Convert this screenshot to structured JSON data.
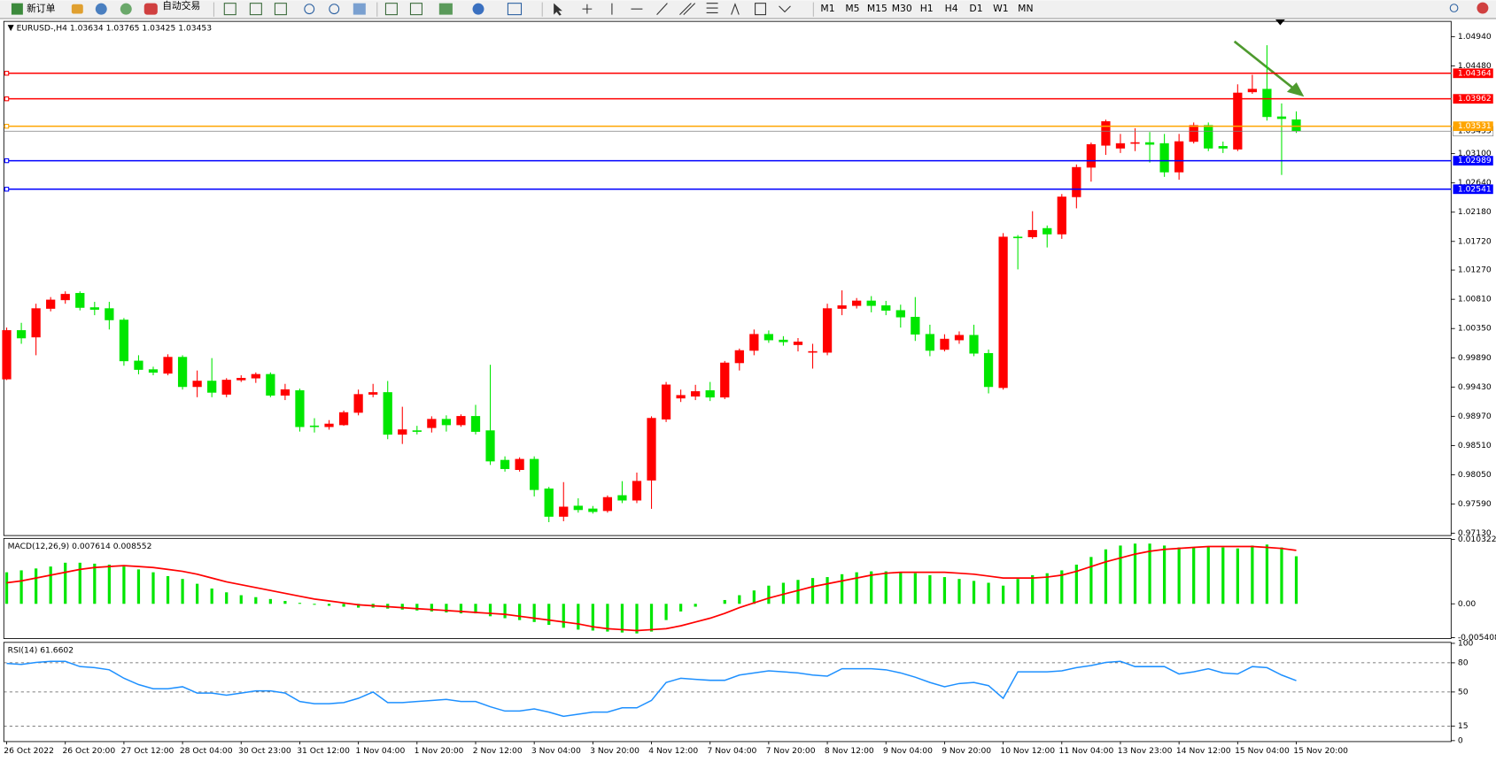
{
  "toolbar": {
    "new_order": "新订单",
    "auto_trading": "自动交易",
    "timeframes": [
      "M1",
      "M5",
      "M15",
      "M30",
      "H1",
      "H4",
      "D1",
      "W1",
      "MN"
    ]
  },
  "chart_data": [
    {
      "type": "candlestick",
      "symbol": "EURUSD-,H4",
      "categories": [
        "26 Oct 2022",
        null,
        null,
        null,
        "26 Oct 20:00",
        null,
        null,
        null,
        "27 Oct 12:00",
        null,
        null,
        null,
        "28 Oct 04:00",
        null,
        null,
        null,
        "30 Oct 23:00",
        null,
        null,
        null,
        "31 Oct 12:00",
        null,
        null,
        null,
        "1 Nov 04:00",
        null,
        null,
        null,
        "1 Nov 20:00",
        null,
        null,
        null,
        "2 Nov 12:00",
        null,
        null,
        null,
        "3 Nov 04:00",
        null,
        null,
        null,
        "3 Nov 20:00",
        null,
        null,
        null,
        "4 Nov 12:00",
        null,
        null,
        null,
        "7 Nov 04:00",
        null,
        null,
        null,
        "7 Nov 20:00",
        null,
        null,
        null,
        "8 Nov 12:00",
        null,
        null,
        null,
        "9 Nov 04:00",
        null,
        null,
        null,
        "9 Nov 20:00",
        null,
        null,
        null,
        "10 Nov 12:00",
        null,
        null,
        null,
        "11 Nov 04:00",
        null,
        null,
        null,
        "13 Nov 23:00",
        null,
        null,
        null,
        "14 Nov 12:00",
        null,
        null,
        null,
        "15 Nov 04:00",
        null,
        null,
        null,
        "15 Nov 20:00"
      ],
      "open": [
        0.99555,
        1.0032,
        1.00215,
        1.00665,
        1.008,
        1.00905,
        1.0068,
        1.00665,
        1.00485,
        0.9984,
        0.99705,
        0.99645,
        0.999,
        0.99435,
        0.99525,
        0.99315,
        0.9954,
        0.9957,
        0.9963,
        0.993,
        0.99375,
        0.9882,
        0.98805,
        0.98835,
        0.9903,
        0.99315,
        0.99345,
        0.98685,
        0.98745,
        0.9879,
        0.98925,
        0.98835,
        0.9897,
        0.98745,
        0.9828,
        0.9813,
        0.98295,
        0.9783,
        0.97395,
        0.9756,
        0.97515,
        0.97485,
        0.97725,
        0.9765,
        0.97965,
        0.98925,
        0.99255,
        0.99285,
        0.99375,
        0.9927,
        0.9981,
        1.00005,
        1.0026,
        1.0017,
        1.00095,
        0.99975,
        0.99975,
        1.00665,
        1.0071,
        1.00785,
        1.0071,
        1.00635,
        1.0053,
        1.0026,
        1.0002,
        1.0017,
        1.00245,
        0.9996,
        0.9942,
        1.0179,
        1.0179,
        1.01925,
        1.01835,
        1.0242,
        1.02885,
        1.0323,
        1.03185,
        1.0326,
        1.03275,
        1.0326,
        1.0281,
        1.0329,
        1.03545,
        1.03215,
        1.0317,
        1.0407,
        1.04115,
        1.0368,
        1.03634
      ],
      "high": [
        1.00365,
        1.0044,
        1.0074,
        1.00845,
        1.00935,
        1.00935,
        1.0077,
        1.0077,
        1.00515,
        0.9993,
        0.9975,
        0.99945,
        0.9993,
        0.9969,
        0.99885,
        0.9957,
        0.99615,
        0.9966,
        0.9966,
        0.9948,
        0.99405,
        0.9894,
        0.9891,
        0.9906,
        0.9939,
        0.9948,
        0.99525,
        0.9912,
        0.9882,
        0.9897,
        0.98985,
        0.99,
        0.9915,
        0.9978,
        0.9834,
        0.98325,
        0.9834,
        0.9786,
        0.97935,
        0.9768,
        0.9756,
        0.97725,
        0.9795,
        0.98085,
        0.9897,
        0.9951,
        0.9939,
        0.99465,
        0.9951,
        0.9984,
        1.00035,
        1.00335,
        1.0032,
        1.0023,
        1.002,
        1.0011,
        1.0074,
        1.0095,
        1.0083,
        1.0086,
        1.00785,
        1.00725,
        1.00845,
        1.0041,
        1.0026,
        1.00305,
        1.0041,
        1.0002,
        1.0185,
        1.0182,
        1.02195,
        1.0197,
        1.02465,
        1.0293,
        1.03275,
        1.03635,
        1.0341,
        1.035,
        1.0344,
        1.0341,
        1.0341,
        1.0359,
        1.0359,
        1.0329,
        1.0419,
        1.0434,
        1.04805,
        1.0389,
        1.03765
      ],
      "low": [
        0.9954,
        1.0011,
        0.9993,
        1.0062,
        1.0074,
        1.00635,
        1.0056,
        1.00335,
        0.99765,
        0.9963,
        0.99615,
        0.99615,
        0.9939,
        0.9927,
        0.9927,
        0.9927,
        0.9951,
        0.99495,
        0.9927,
        0.99225,
        0.9873,
        0.98715,
        0.9876,
        0.9882,
        0.98985,
        0.9927,
        0.9861,
        0.98535,
        0.98685,
        0.98715,
        0.9873,
        0.98805,
        0.98685,
        0.98205,
        0.981,
        0.981,
        0.9771,
        0.97305,
        0.9732,
        0.97455,
        0.9744,
        0.97455,
        0.97605,
        0.97605,
        0.97515,
        0.9888,
        0.99195,
        0.99225,
        0.9921,
        0.9924,
        0.9969,
        0.9993,
        1.00125,
        1.0008,
        0.9999,
        0.9972,
        0.9993,
        1.0056,
        1.00665,
        1.00605,
        1.0056,
        1.00365,
        1.00155,
        0.99915,
        0.9999,
        1.0011,
        0.99915,
        0.9933,
        0.9939,
        1.0128,
        1.0176,
        1.01625,
        1.0176,
        1.0224,
        1.0266,
        1.0308,
        1.0311,
        1.0314,
        1.0296,
        1.02735,
        1.0269,
        1.0326,
        1.0314,
        1.0311,
        1.0314,
        1.0404,
        1.0362,
        1.02765,
        1.03425
      ],
      "close": [
        1.0032,
        1.002,
        1.00665,
        1.008,
        1.0089,
        1.0068,
        1.0065,
        1.00485,
        0.9984,
        0.99705,
        0.9966,
        0.999,
        0.99435,
        0.99525,
        0.99345,
        0.9954,
        0.9957,
        0.9963,
        0.993,
        0.9939,
        0.98805,
        0.98805,
        0.9885,
        0.9903,
        0.99315,
        0.99345,
        0.98685,
        0.9876,
        0.9873,
        0.98925,
        0.98835,
        0.9897,
        0.9873,
        0.98265,
        0.98145,
        0.98295,
        0.97815,
        0.97395,
        0.97545,
        0.975,
        0.9747,
        0.97695,
        0.9765,
        0.9795,
        0.9894,
        0.99465,
        0.993,
        0.9936,
        0.9927,
        0.9981,
        1.00005,
        1.0026,
        1.0017,
        1.0014,
        1.0014,
        0.9999,
        1.00665,
        1.0071,
        1.00785,
        1.0071,
        1.00635,
        1.0053,
        1.0026,
        1.00005,
        1.00185,
        1.00245,
        0.9996,
        0.99435,
        1.0179,
        1.01775,
        1.01895,
        1.01835,
        1.0242,
        1.02885,
        1.03245,
        1.03605,
        1.0326,
        1.03275,
        1.03245,
        1.0281,
        1.0329,
        1.03545,
        1.03185,
        1.03185,
        1.04055,
        1.04115,
        1.0368,
        1.0365,
        1.03453
      ],
      "up_color": "#ff0000",
      "down_color": "#00e600",
      "ylim": [
        0.97095,
        1.0518
      ],
      "yticks": [
        {
          "value": 1.0494,
          "label": "1.04940"
        },
        {
          "value": 1.0448,
          "label": "1.04480"
        },
        {
          "value": 1.031,
          "label": "1.03100"
        },
        {
          "value": 1.0264,
          "label": "1.02640"
        },
        {
          "value": 1.0218,
          "label": "1.02180"
        },
        {
          "value": 1.0172,
          "label": "1.01720"
        },
        {
          "value": 1.0127,
          "label": "1.01270"
        },
        {
          "value": 1.0081,
          "label": "1.00810"
        },
        {
          "value": 1.0035,
          "label": "1.00350"
        },
        {
          "value": 0.9989,
          "label": "0.99890"
        },
        {
          "value": 0.9943,
          "label": "0.99430"
        },
        {
          "value": 0.9897,
          "label": "0.98970"
        },
        {
          "value": 0.9851,
          "label": "0.98510"
        },
        {
          "value": 0.9805,
          "label": "0.98050"
        },
        {
          "value": 0.9759,
          "label": "0.97590"
        },
        {
          "value": 0.9713,
          "label": "0.97130"
        }
      ],
      "hlines": [
        {
          "value": 1.04364,
          "color": "#ff0000"
        },
        {
          "value": 1.03962,
          "color": "#ff0000"
        },
        {
          "value": 1.03531,
          "color": "#ffa500"
        },
        {
          "value": 1.02989,
          "color": "#0000ff"
        },
        {
          "value": 1.02541,
          "color": "#0000ff"
        }
      ]
    },
    {
      "type": "macd",
      "title": "MACD(12,26,9)",
      "series": [
        {
          "style": "bar",
          "color": "#00e600",
          "values": [
            0.00505,
            0.00536,
            0.00566,
            0.00597,
            0.00658,
            0.00658,
            0.00643,
            0.00627,
            0.00597,
            0.00551,
            0.00505,
            0.00444,
            0.00398,
            0.00321,
            0.00245,
            0.00184,
            0.00138,
            0.00107,
            0.00077,
            0.00046,
            0.00015,
            -0.00015,
            -0.00031,
            -0.00046,
            -0.00061,
            -0.00061,
            -0.00077,
            -0.00092,
            -0.00107,
            -0.00122,
            -0.00138,
            -0.00153,
            -0.00153,
            -0.00199,
            -0.0023,
            -0.0026,
            -0.00291,
            -0.00337,
            -0.00383,
            -0.00413,
            -0.00428,
            -0.00444,
            -0.00459,
            -0.00474,
            -0.00444,
            -0.0026,
            -0.00122,
            -0.00046,
            0,
            0.00061,
            0.00138,
            0.00214,
            0.00291,
            0.00337,
            0.00383,
            0.00413,
            0.00428,
            0.00474,
            0.00505,
            0.0052,
            0.0052,
            0.00505,
            0.0049,
            0.00459,
            0.00428,
            0.00398,
            0.00367,
            0.00337,
            0.00291,
            0.00398,
            0.00459,
            0.0049,
            0.00536,
            0.00627,
            0.0075,
            0.00872,
            0.00933,
            0.00964,
            0.00964,
            0.00933,
            0.00903,
            0.00903,
            0.00918,
            0.00903,
            0.00887,
            0.00933,
            0.00949,
            0.00903,
            0.007614
          ]
        },
        {
          "style": "line",
          "color": "#ff0000",
          "values": [
            0.00337,
            0.00367,
            0.00413,
            0.00459,
            0.00505,
            0.00551,
            0.00581,
            0.00597,
            0.00612,
            0.00597,
            0.00581,
            0.00551,
            0.0052,
            0.00474,
            0.00413,
            0.00352,
            0.00306,
            0.0026,
            0.00214,
            0.00168,
            0.00122,
            0.00077,
            0.00046,
            0.00015,
            -0.00015,
            -0.00031,
            -0.00046,
            -0.00061,
            -0.00077,
            -0.00092,
            -0.00107,
            -0.00122,
            -0.00138,
            -0.00153,
            -0.00168,
            -0.00199,
            -0.0023,
            -0.0026,
            -0.00291,
            -0.00321,
            -0.00367,
            -0.00398,
            -0.00413,
            -0.00428,
            -0.00413,
            -0.00398,
            -0.00352,
            -0.00291,
            -0.0023,
            -0.00153,
            -0.00061,
            0.00015,
            0.00092,
            0.00153,
            0.00214,
            0.00275,
            0.00321,
            0.00367,
            0.00413,
            0.00459,
            0.0049,
            0.00505,
            0.00505,
            0.00505,
            0.00505,
            0.0049,
            0.00474,
            0.00444,
            0.00413,
            0.00413,
            0.00413,
            0.00428,
            0.00459,
            0.0052,
            0.00597,
            0.00673,
            0.00734,
            0.00796,
            0.00842,
            0.00872,
            0.00887,
            0.00903,
            0.00918,
            0.00918,
            0.00918,
            0.00918,
            0.00903,
            0.00887,
            0.008552
          ]
        }
      ],
      "ylim": [
        -0.005408,
        0.010322
      ],
      "yticks": [
        -0.005408,
        {
          "value": 0,
          "label": "0.00"
        },
        0.010322
      ]
    },
    {
      "type": "line",
      "title": "RSI(14)",
      "color": "#1e90ff",
      "values": [
        79.3,
        78.3,
        80.4,
        81.5,
        81.5,
        76.1,
        75,
        72.8,
        64.1,
        57.6,
        53.3,
        53.3,
        55.4,
        48.9,
        48.9,
        46.7,
        48.9,
        51.1,
        51.1,
        48.9,
        40.2,
        38,
        38,
        39.1,
        43.5,
        50,
        39.1,
        39.1,
        40.2,
        41.3,
        42.4,
        40.2,
        40.2,
        34.8,
        30.4,
        30.4,
        32.6,
        29.3,
        25,
        27.2,
        29.3,
        29.3,
        33.7,
        33.7,
        41.3,
        59.8,
        64.1,
        63,
        62,
        62,
        67.4,
        69.6,
        71.7,
        70.7,
        69.6,
        67.4,
        66.3,
        73.9,
        73.9,
        73.9,
        72.8,
        69.6,
        65.2,
        59.8,
        55.4,
        58.7,
        59.8,
        56.5,
        43.5,
        70.7,
        70.7,
        70.7,
        71.7,
        75,
        77.2,
        80.4,
        81.5,
        76.1,
        76.1,
        76.1,
        68.5,
        70.7,
        73.9,
        69.6,
        68.5,
        76.1,
        75,
        67.4,
        61.6602
      ],
      "ylim": [
        0,
        100
      ],
      "yticks": [
        0,
        15,
        50,
        80,
        100
      ],
      "levels": [
        15,
        50,
        80
      ]
    }
  ]
}
